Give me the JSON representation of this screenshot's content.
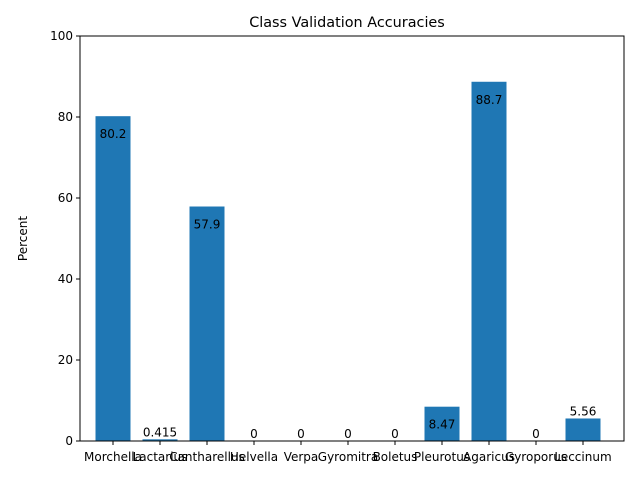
{
  "chart_data": {
    "type": "bar",
    "title": "Class Validation Accuracies",
    "xlabel": "",
    "ylabel": "Percent",
    "ylim": [
      0,
      100
    ],
    "yticks": [
      0,
      20,
      40,
      60,
      80,
      100
    ],
    "grid": false,
    "categories": [
      "Morchella",
      "Lactarius",
      "Cantharellus",
      "Helvella",
      "Verpa",
      "Gyromitra",
      "Boletus",
      "Pleurotus",
      "Agaricus",
      "Gyroporus",
      "Leccinum"
    ],
    "values": [
      80.2,
      0.415,
      57.9,
      0,
      0,
      0,
      0,
      8.47,
      88.7,
      0,
      5.56
    ],
    "value_labels": [
      "80.2",
      "0.415",
      "57.9",
      "0",
      "0",
      "0",
      "0",
      "8.47",
      "88.7",
      "0",
      "5.56"
    ],
    "bar_color": "#1f77b4"
  }
}
